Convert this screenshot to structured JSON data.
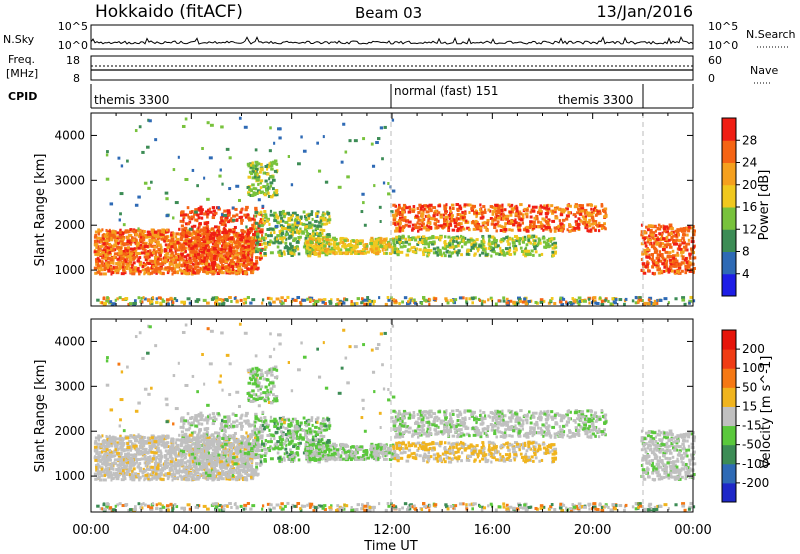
{
  "header": {
    "radar": "Hokkaido (fitACF)",
    "beam": "Beam 03",
    "date": "13/Jan/2016"
  },
  "noise_panel": {
    "left_label": "N.Sky",
    "right_label": "N.Search",
    "left_ticks": [
      "10^5",
      "10^0"
    ],
    "right_ticks": [
      "10^5",
      "10^0"
    ]
  },
  "freq_panel": {
    "left_label": "Freq.",
    "left_unit": "[MHz]",
    "left_ticks": [
      "18",
      "8"
    ],
    "right_label": "Nave",
    "right_ticks": [
      "60",
      "0"
    ]
  },
  "cpid_panel": {
    "label": "CPID",
    "segments": [
      "themis 3300",
      "normal (fast) 151",
      "themis 3300"
    ]
  },
  "chart_data": [
    {
      "type": "heatmap",
      "name": "power",
      "ylabel": "Slant Range [km]",
      "ylim": [
        200,
        4500
      ],
      "yticks": [
        1000,
        2000,
        3000,
        4000
      ],
      "xlim_hours": [
        0,
        24
      ],
      "colorbar": {
        "label": "Power [dB]",
        "ticks": [
          "28",
          "24",
          "20",
          "16",
          "12",
          "8",
          "4"
        ],
        "colors": [
          "#1e1ee6",
          "#2e6ab5",
          "#3c8c55",
          "#78c23c",
          "#f0c81e",
          "#f5a01e",
          "#f56414",
          "#f01e14"
        ]
      }
    },
    {
      "type": "heatmap",
      "name": "velocity",
      "ylabel": "Slant Range [km]",
      "ylim": [
        200,
        4500
      ],
      "yticks": [
        1000,
        2000,
        3000,
        4000
      ],
      "xlim_hours": [
        0,
        24
      ],
      "colorbar": {
        "label": "Velocity [m s^-1]",
        "ticks": [
          "200",
          "100",
          "50",
          "15",
          "-15",
          "-50",
          "-100",
          "-200"
        ],
        "colors": [
          "#1e28c8",
          "#2e6ab5",
          "#3c8c55",
          "#5ac83c",
          "#c0c0c0",
          "#f0b41e",
          "#f57814",
          "#f03c14",
          "#e6140a"
        ]
      }
    }
  ],
  "xaxis": {
    "ticks": [
      "00:00",
      "04:00",
      "08:00",
      "12:00",
      "16:00",
      "20:00",
      "00:00"
    ],
    "label": "Time UT"
  }
}
